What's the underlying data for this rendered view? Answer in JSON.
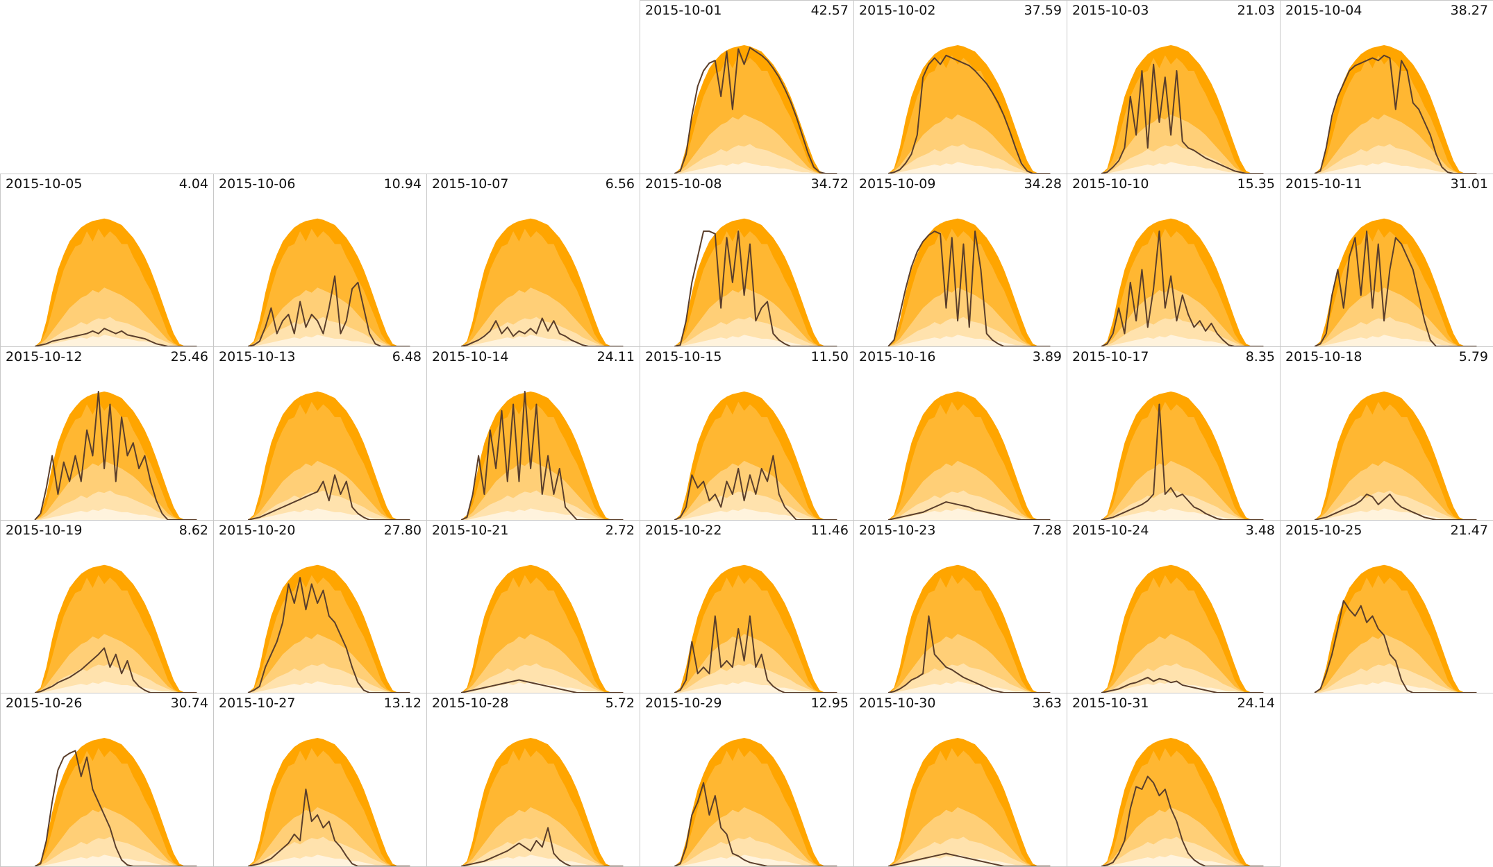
{
  "chart_data": {
    "type": "area",
    "layout": {
      "columns": 7,
      "rows": 5,
      "first_weekday_column": 3
    },
    "colors": {
      "band_max": "#ffa500",
      "band_p90": "#ffb732",
      "band_p75": "#ffcf77",
      "band_p50": "#ffe2ad",
      "band_p25": "#fff3dd",
      "actual_line": "#5a3e2b",
      "cell_border": "#c8c8c8"
    },
    "envelope": {
      "description_levels": [
        "max",
        "p90",
        "p75",
        "p50",
        "p25"
      ],
      "hours": [
        6,
        6.5,
        7,
        7.5,
        8,
        8.5,
        9,
        9.5,
        10,
        10.5,
        11,
        11.5,
        12,
        12.5,
        13,
        13.5,
        14,
        14.5,
        15,
        15.5,
        16,
        16.5,
        17,
        17.5,
        18,
        18.5,
        19,
        19.5,
        20
      ],
      "max": [
        0,
        0.04,
        0.2,
        0.42,
        0.6,
        0.72,
        0.82,
        0.88,
        0.93,
        0.96,
        0.98,
        0.99,
        1.0,
        0.99,
        0.97,
        0.95,
        0.9,
        0.85,
        0.78,
        0.7,
        0.6,
        0.48,
        0.35,
        0.22,
        0.1,
        0.02,
        0,
        0,
        0
      ],
      "p90": [
        0,
        0.03,
        0.12,
        0.28,
        0.45,
        0.6,
        0.7,
        0.78,
        0.8,
        0.9,
        0.82,
        0.92,
        0.85,
        0.9,
        0.86,
        0.8,
        0.8,
        0.7,
        0.62,
        0.52,
        0.44,
        0.33,
        0.22,
        0.1,
        0.03,
        0,
        0,
        0,
        0
      ],
      "p75": [
        0,
        0.02,
        0.06,
        0.12,
        0.18,
        0.24,
        0.3,
        0.34,
        0.38,
        0.4,
        0.44,
        0.42,
        0.46,
        0.44,
        0.42,
        0.4,
        0.37,
        0.34,
        0.3,
        0.25,
        0.2,
        0.15,
        0.1,
        0.05,
        0.02,
        0,
        0,
        0,
        0
      ],
      "p50": [
        0,
        0.01,
        0.03,
        0.06,
        0.09,
        0.12,
        0.14,
        0.16,
        0.19,
        0.17,
        0.2,
        0.22,
        0.21,
        0.23,
        0.2,
        0.19,
        0.18,
        0.16,
        0.14,
        0.12,
        0.1,
        0.07,
        0.05,
        0.03,
        0.01,
        0,
        0,
        0,
        0
      ],
      "p25": [
        0,
        0,
        0.01,
        0.02,
        0.03,
        0.04,
        0.05,
        0.06,
        0.07,
        0.06,
        0.08,
        0.07,
        0.09,
        0.08,
        0.07,
        0.06,
        0.06,
        0.05,
        0.04,
        0.04,
        0.03,
        0.02,
        0.01,
        0.01,
        0,
        0,
        0,
        0,
        0
      ]
    },
    "days": [
      {
        "date": "2015-10-01",
        "total": "42.57",
        "values": [
          0,
          0.02,
          0.15,
          0.45,
          0.68,
          0.8,
          0.86,
          0.88,
          0.6,
          0.95,
          0.5,
          0.97,
          0.85,
          0.98,
          0.95,
          0.92,
          0.88,
          0.82,
          0.75,
          0.66,
          0.56,
          0.44,
          0.3,
          0.16,
          0.05,
          0.01,
          0,
          0,
          0
        ]
      },
      {
        "date": "2015-10-02",
        "total": "37.59",
        "values": [
          0,
          0.01,
          0.03,
          0.08,
          0.15,
          0.3,
          0.75,
          0.85,
          0.9,
          0.85,
          0.92,
          0.9,
          0.88,
          0.86,
          0.84,
          0.8,
          0.75,
          0.7,
          0.63,
          0.55,
          0.45,
          0.33,
          0.2,
          0.08,
          0.02,
          0,
          0,
          0,
          0
        ]
      },
      {
        "date": "2015-10-03",
        "total": "21.03",
        "values": [
          0,
          0.01,
          0.05,
          0.1,
          0.2,
          0.6,
          0.3,
          0.8,
          0.2,
          0.85,
          0.4,
          0.75,
          0.3,
          0.8,
          0.25,
          0.2,
          0.18,
          0.15,
          0.12,
          0.1,
          0.08,
          0.06,
          0.04,
          0.02,
          0.01,
          0,
          0,
          0,
          0
        ]
      },
      {
        "date": "2015-10-04",
        "total": "38.27",
        "values": [
          0,
          0.02,
          0.2,
          0.45,
          0.6,
          0.7,
          0.8,
          0.84,
          0.86,
          0.88,
          0.9,
          0.88,
          0.92,
          0.9,
          0.5,
          0.88,
          0.8,
          0.55,
          0.5,
          0.4,
          0.3,
          0.15,
          0.05,
          0.01,
          0,
          0,
          0,
          0,
          0
        ]
      },
      {
        "date": "2015-10-05",
        "total": "4.04",
        "values": [
          0,
          0.01,
          0.02,
          0.04,
          0.05,
          0.06,
          0.07,
          0.08,
          0.09,
          0.1,
          0.12,
          0.1,
          0.14,
          0.12,
          0.1,
          0.12,
          0.09,
          0.08,
          0.07,
          0.06,
          0.04,
          0.02,
          0.01,
          0,
          0,
          0,
          0,
          0,
          0
        ]
      },
      {
        "date": "2015-10-06",
        "total": "10.94",
        "values": [
          0,
          0.01,
          0.04,
          0.15,
          0.3,
          0.1,
          0.2,
          0.25,
          0.1,
          0.35,
          0.15,
          0.25,
          0.2,
          0.1,
          0.3,
          0.55,
          0.1,
          0.2,
          0.45,
          0.5,
          0.3,
          0.1,
          0.02,
          0,
          0,
          0,
          0,
          0,
          0
        ]
      },
      {
        "date": "2015-10-07",
        "total": "6.56",
        "values": [
          0,
          0.01,
          0.03,
          0.05,
          0.08,
          0.12,
          0.2,
          0.1,
          0.15,
          0.08,
          0.12,
          0.1,
          0.14,
          0.1,
          0.22,
          0.12,
          0.2,
          0.1,
          0.08,
          0.05,
          0.03,
          0.01,
          0,
          0,
          0,
          0,
          0,
          0,
          0
        ]
      },
      {
        "date": "2015-10-08",
        "total": "34.72",
        "values": [
          0,
          0.01,
          0.2,
          0.5,
          0.7,
          0.9,
          0.9,
          0.88,
          0.3,
          0.85,
          0.5,
          0.9,
          0.4,
          0.8,
          0.2,
          0.3,
          0.35,
          0.1,
          0.05,
          0.02,
          0,
          0,
          0,
          0,
          0,
          0,
          0,
          0,
          0
        ]
      },
      {
        "date": "2015-10-09",
        "total": "34.28",
        "values": [
          0,
          0.05,
          0.25,
          0.45,
          0.62,
          0.74,
          0.82,
          0.87,
          0.9,
          0.88,
          0.3,
          0.85,
          0.2,
          0.8,
          0.15,
          0.9,
          0.6,
          0.1,
          0.05,
          0.02,
          0,
          0,
          0,
          0,
          0,
          0,
          0,
          0,
          0
        ]
      },
      {
        "date": "2015-10-10",
        "total": "15.35",
        "values": [
          0,
          0.02,
          0.1,
          0.3,
          0.1,
          0.5,
          0.2,
          0.6,
          0.15,
          0.45,
          0.9,
          0.3,
          0.55,
          0.2,
          0.4,
          0.25,
          0.15,
          0.2,
          0.12,
          0.18,
          0.1,
          0.05,
          0.01,
          0,
          0,
          0,
          0,
          0,
          0
        ]
      },
      {
        "date": "2015-10-11",
        "total": "31.01",
        "values": [
          0,
          0.02,
          0.1,
          0.4,
          0.6,
          0.3,
          0.7,
          0.85,
          0.4,
          0.9,
          0.3,
          0.8,
          0.2,
          0.6,
          0.85,
          0.8,
          0.7,
          0.6,
          0.4,
          0.2,
          0.05,
          0,
          0,
          0,
          0,
          0,
          0,
          0,
          0
        ]
      },
      {
        "date": "2015-10-12",
        "total": "25.46",
        "values": [
          0,
          0.05,
          0.25,
          0.5,
          0.2,
          0.45,
          0.3,
          0.5,
          0.3,
          0.7,
          0.5,
          1.0,
          0.4,
          0.9,
          0.3,
          0.8,
          0.5,
          0.6,
          0.4,
          0.5,
          0.3,
          0.15,
          0.05,
          0,
          0,
          0,
          0,
          0,
          0
        ]
      },
      {
        "date": "2015-10-13",
        "total": "6.48",
        "values": [
          0,
          0.01,
          0.02,
          0.04,
          0.06,
          0.08,
          0.1,
          0.12,
          0.14,
          0.16,
          0.18,
          0.2,
          0.22,
          0.3,
          0.15,
          0.35,
          0.2,
          0.3,
          0.1,
          0.05,
          0.02,
          0,
          0,
          0,
          0,
          0,
          0,
          0,
          0
        ]
      },
      {
        "date": "2015-10-14",
        "total": "24.11",
        "values": [
          0,
          0.02,
          0.2,
          0.5,
          0.2,
          0.7,
          0.4,
          0.85,
          0.3,
          0.9,
          0.3,
          1.0,
          0.4,
          0.9,
          0.2,
          0.5,
          0.2,
          0.4,
          0.1,
          0.05,
          0,
          0,
          0,
          0,
          0,
          0,
          0,
          0,
          0
        ]
      },
      {
        "date": "2015-10-15",
        "total": "11.50",
        "values": [
          0,
          0.02,
          0.1,
          0.35,
          0.25,
          0.3,
          0.15,
          0.2,
          0.1,
          0.3,
          0.2,
          0.4,
          0.15,
          0.35,
          0.2,
          0.4,
          0.3,
          0.5,
          0.2,
          0.1,
          0.05,
          0,
          0,
          0,
          0,
          0,
          0,
          0,
          0
        ]
      },
      {
        "date": "2015-10-16",
        "total": "3.89",
        "values": [
          0,
          0.01,
          0.02,
          0.03,
          0.04,
          0.05,
          0.06,
          0.08,
          0.1,
          0.12,
          0.14,
          0.13,
          0.12,
          0.11,
          0.1,
          0.08,
          0.07,
          0.06,
          0.05,
          0.04,
          0.03,
          0.02,
          0.01,
          0,
          0,
          0,
          0,
          0,
          0
        ]
      },
      {
        "date": "2015-10-17",
        "total": "8.35",
        "values": [
          0,
          0.01,
          0.02,
          0.04,
          0.06,
          0.08,
          0.1,
          0.12,
          0.15,
          0.2,
          0.9,
          0.2,
          0.25,
          0.18,
          0.2,
          0.15,
          0.1,
          0.08,
          0.05,
          0.03,
          0.01,
          0,
          0,
          0,
          0,
          0,
          0,
          0,
          0
        ]
      },
      {
        "date": "2015-10-18",
        "total": "5.79",
        "values": [
          0,
          0.01,
          0.02,
          0.04,
          0.06,
          0.08,
          0.1,
          0.12,
          0.15,
          0.2,
          0.18,
          0.12,
          0.16,
          0.2,
          0.14,
          0.1,
          0.08,
          0.06,
          0.04,
          0.02,
          0.01,
          0,
          0,
          0,
          0,
          0,
          0,
          0,
          0
        ]
      },
      {
        "date": "2015-10-19",
        "total": "8.62",
        "values": [
          0,
          0.01,
          0.03,
          0.05,
          0.08,
          0.1,
          0.12,
          0.15,
          0.18,
          0.22,
          0.26,
          0.3,
          0.35,
          0.2,
          0.3,
          0.15,
          0.25,
          0.1,
          0.05,
          0.02,
          0,
          0,
          0,
          0,
          0,
          0,
          0,
          0,
          0
        ]
      },
      {
        "date": "2015-10-20",
        "total": "27.80",
        "values": [
          0,
          0.02,
          0.05,
          0.2,
          0.3,
          0.4,
          0.55,
          0.85,
          0.7,
          0.9,
          0.65,
          0.85,
          0.7,
          0.8,
          0.6,
          0.55,
          0.45,
          0.35,
          0.2,
          0.08,
          0.02,
          0,
          0,
          0,
          0,
          0,
          0,
          0,
          0
        ]
      },
      {
        "date": "2015-10-21",
        "total": "2.72",
        "values": [
          0,
          0.01,
          0.02,
          0.03,
          0.04,
          0.05,
          0.06,
          0.07,
          0.08,
          0.09,
          0.1,
          0.09,
          0.08,
          0.07,
          0.06,
          0.05,
          0.04,
          0.03,
          0.02,
          0.01,
          0,
          0,
          0,
          0,
          0,
          0,
          0,
          0,
          0
        ]
      },
      {
        "date": "2015-10-22",
        "total": "11.46",
        "values": [
          0,
          0.02,
          0.1,
          0.4,
          0.15,
          0.2,
          0.15,
          0.6,
          0.2,
          0.25,
          0.2,
          0.5,
          0.25,
          0.6,
          0.2,
          0.3,
          0.1,
          0.05,
          0.02,
          0,
          0,
          0,
          0,
          0,
          0,
          0,
          0,
          0,
          0
        ]
      },
      {
        "date": "2015-10-23",
        "total": "7.28",
        "values": [
          0,
          0.01,
          0.03,
          0.06,
          0.1,
          0.12,
          0.15,
          0.6,
          0.3,
          0.25,
          0.2,
          0.18,
          0.15,
          0.12,
          0.1,
          0.08,
          0.06,
          0.04,
          0.02,
          0.01,
          0,
          0,
          0,
          0,
          0,
          0,
          0,
          0,
          0
        ]
      },
      {
        "date": "2015-10-24",
        "total": "3.48",
        "values": [
          0,
          0.01,
          0.02,
          0.03,
          0.05,
          0.07,
          0.08,
          0.1,
          0.12,
          0.09,
          0.11,
          0.1,
          0.08,
          0.09,
          0.06,
          0.05,
          0.04,
          0.03,
          0.02,
          0.01,
          0,
          0,
          0,
          0,
          0,
          0,
          0,
          0,
          0
        ]
      },
      {
        "date": "2015-10-25",
        "total": "21.47",
        "values": [
          0,
          0.03,
          0.15,
          0.3,
          0.5,
          0.72,
          0.65,
          0.6,
          0.68,
          0.55,
          0.6,
          0.5,
          0.45,
          0.3,
          0.25,
          0.1,
          0.02,
          0,
          0,
          0,
          0,
          0,
          0,
          0,
          0,
          0,
          0,
          0,
          0
        ]
      },
      {
        "date": "2015-10-26",
        "total": "30.74",
        "values": [
          0,
          0.02,
          0.2,
          0.5,
          0.75,
          0.85,
          0.88,
          0.9,
          0.7,
          0.85,
          0.6,
          0.5,
          0.4,
          0.3,
          0.15,
          0.05,
          0.01,
          0,
          0,
          0,
          0,
          0,
          0,
          0,
          0,
          0,
          0,
          0,
          0
        ]
      },
      {
        "date": "2015-10-27",
        "total": "13.12",
        "values": [
          0,
          0.01,
          0.02,
          0.04,
          0.06,
          0.1,
          0.14,
          0.18,
          0.25,
          0.2,
          0.6,
          0.35,
          0.4,
          0.3,
          0.35,
          0.2,
          0.15,
          0.08,
          0.02,
          0,
          0,
          0,
          0,
          0,
          0,
          0,
          0,
          0,
          0
        ]
      },
      {
        "date": "2015-10-28",
        "total": "5.72",
        "values": [
          0,
          0.01,
          0.02,
          0.03,
          0.04,
          0.06,
          0.08,
          0.1,
          0.12,
          0.15,
          0.18,
          0.15,
          0.12,
          0.2,
          0.15,
          0.3,
          0.1,
          0.05,
          0.02,
          0,
          0,
          0,
          0,
          0,
          0,
          0,
          0,
          0,
          0
        ]
      },
      {
        "date": "2015-10-29",
        "total": "12.95",
        "values": [
          0,
          0.02,
          0.15,
          0.4,
          0.5,
          0.65,
          0.4,
          0.55,
          0.3,
          0.25,
          0.1,
          0.08,
          0.05,
          0.03,
          0.02,
          0.01,
          0,
          0,
          0,
          0,
          0,
          0,
          0,
          0,
          0,
          0,
          0,
          0,
          0
        ]
      },
      {
        "date": "2015-10-30",
        "total": "3.63",
        "values": [
          0,
          0.01,
          0.02,
          0.03,
          0.04,
          0.05,
          0.06,
          0.07,
          0.08,
          0.09,
          0.1,
          0.09,
          0.08,
          0.07,
          0.06,
          0.05,
          0.04,
          0.03,
          0.02,
          0.01,
          0,
          0,
          0,
          0,
          0,
          0,
          0,
          0,
          0
        ]
      },
      {
        "date": "2015-10-31",
        "total": "24.14",
        "values": [
          0,
          0.01,
          0.03,
          0.1,
          0.2,
          0.45,
          0.62,
          0.6,
          0.7,
          0.65,
          0.55,
          0.6,
          0.45,
          0.35,
          0.2,
          0.1,
          0.05,
          0.02,
          0,
          0,
          0,
          0,
          0,
          0,
          0,
          0,
          0,
          0,
          0
        ]
      }
    ]
  }
}
